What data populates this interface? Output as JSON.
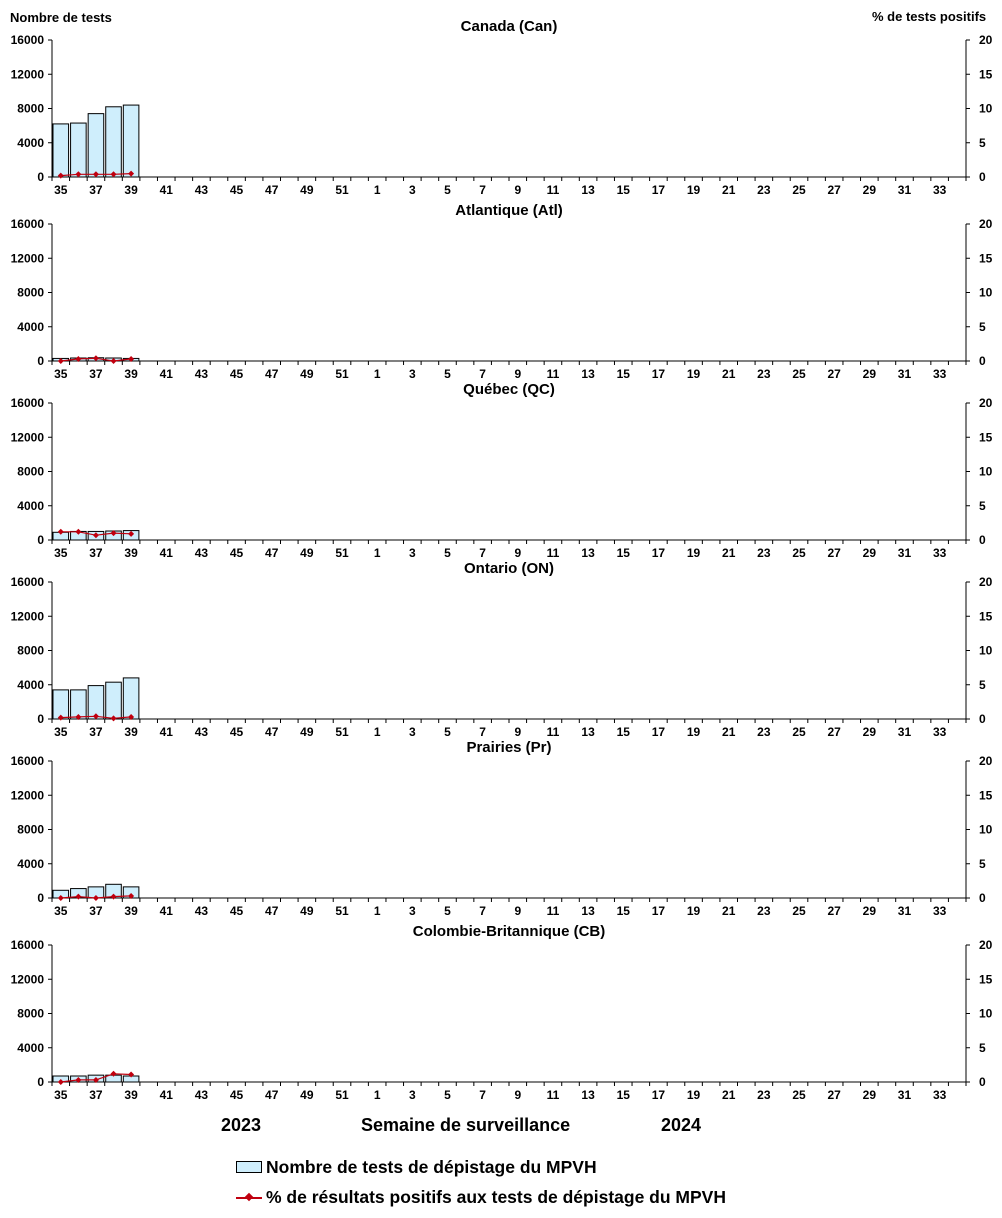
{
  "header": {
    "left_axis_title": "Nombre de tests",
    "right_axis_title": "% de tests positifs"
  },
  "footer": {
    "year_left": "2023",
    "x_axis_title": "Semaine de surveillance",
    "year_right": "2024"
  },
  "legend": {
    "bar_label": "Nombre de tests de dépistage du MPVH",
    "line_label": "% de résultats positifs aux tests de dépistage du MPVH"
  },
  "colors": {
    "bar_fill": "#cfeefc",
    "bar_stroke": "#000000",
    "line": "#c0000f"
  },
  "chart_data": [
    {
      "type": "bar",
      "title": "Canada (Can)",
      "x_tick_labels": [
        "35",
        "37",
        "39",
        "41",
        "43",
        "45",
        "47",
        "49",
        "51",
        "1",
        "3",
        "5",
        "7",
        "9",
        "11",
        "13",
        "15",
        "17",
        "19",
        "21",
        "23",
        "25",
        "27",
        "29",
        "31",
        "33"
      ],
      "weeks": [
        "35",
        "36",
        "37",
        "38",
        "39",
        "40",
        "41",
        "42",
        "43",
        "44",
        "45",
        "46",
        "47",
        "48",
        "49",
        "50",
        "51",
        "52",
        "1",
        "2",
        "3",
        "4",
        "5",
        "6",
        "7",
        "8",
        "9",
        "10",
        "11",
        "12",
        "13",
        "14",
        "15",
        "16",
        "17",
        "18",
        "19",
        "20",
        "21",
        "22",
        "23",
        "24",
        "25",
        "26",
        "27",
        "28",
        "29",
        "30",
        "31",
        "32",
        "33",
        "34"
      ],
      "ylim": [
        0,
        16000
      ],
      "yticks": [
        0,
        4000,
        8000,
        12000,
        16000
      ],
      "y2lim": [
        0,
        20
      ],
      "y2ticks": [
        0,
        5,
        10,
        15,
        20
      ],
      "series": [
        {
          "name": "Nombre de tests de dépistage du MPVH",
          "axis": "left",
          "values": [
            6200,
            6300,
            7400,
            8200,
            8400
          ]
        },
        {
          "name": "% de résultats positifs aux tests de dépistage du MPVH",
          "axis": "right",
          "type": "line",
          "values": [
            0.2,
            0.4,
            0.4,
            0.4,
            0.5
          ]
        }
      ]
    },
    {
      "type": "bar",
      "title": "Atlantique (Atl)",
      "x_tick_labels": [
        "35",
        "37",
        "39",
        "41",
        "43",
        "45",
        "47",
        "49",
        "51",
        "1",
        "3",
        "5",
        "7",
        "9",
        "11",
        "13",
        "15",
        "17",
        "19",
        "21",
        "23",
        "25",
        "27",
        "29",
        "31",
        "33"
      ],
      "weeks": [
        "35",
        "36",
        "37",
        "38",
        "39",
        "40",
        "41",
        "42",
        "43",
        "44",
        "45",
        "46",
        "47",
        "48",
        "49",
        "50",
        "51",
        "52",
        "1",
        "2",
        "3",
        "4",
        "5",
        "6",
        "7",
        "8",
        "9",
        "10",
        "11",
        "12",
        "13",
        "14",
        "15",
        "16",
        "17",
        "18",
        "19",
        "20",
        "21",
        "22",
        "23",
        "24",
        "25",
        "26",
        "27",
        "28",
        "29",
        "30",
        "31",
        "32",
        "33",
        "34"
      ],
      "ylim": [
        0,
        16000
      ],
      "yticks": [
        0,
        4000,
        8000,
        12000,
        16000
      ],
      "y2lim": [
        0,
        20
      ],
      "y2ticks": [
        0,
        5,
        10,
        15,
        20
      ],
      "series": [
        {
          "name": "Nombre de tests de dépistage du MPVH",
          "axis": "left",
          "values": [
            300,
            350,
            380,
            350,
            300
          ]
        },
        {
          "name": "% de résultats positifs aux tests de dépistage du MPVH",
          "axis": "right",
          "type": "line",
          "values": [
            0.0,
            0.3,
            0.4,
            0.0,
            0.3
          ]
        }
      ]
    },
    {
      "type": "bar",
      "title": "Québec (QC)",
      "x_tick_labels": [
        "35",
        "37",
        "39",
        "41",
        "43",
        "45",
        "47",
        "49",
        "51",
        "1",
        "3",
        "5",
        "7",
        "9",
        "11",
        "13",
        "15",
        "17",
        "19",
        "21",
        "23",
        "25",
        "27",
        "29",
        "31",
        "33"
      ],
      "weeks": [
        "35",
        "36",
        "37",
        "38",
        "39",
        "40",
        "41",
        "42",
        "43",
        "44",
        "45",
        "46",
        "47",
        "48",
        "49",
        "50",
        "51",
        "52",
        "1",
        "2",
        "3",
        "4",
        "5",
        "6",
        "7",
        "8",
        "9",
        "10",
        "11",
        "12",
        "13",
        "14",
        "15",
        "16",
        "17",
        "18",
        "19",
        "20",
        "21",
        "22",
        "23",
        "24",
        "25",
        "26",
        "27",
        "28",
        "29",
        "30",
        "31",
        "32",
        "33",
        "34"
      ],
      "ylim": [
        0,
        16000
      ],
      "yticks": [
        0,
        4000,
        8000,
        12000,
        16000
      ],
      "y2lim": [
        0,
        20
      ],
      "y2ticks": [
        0,
        5,
        10,
        15,
        20
      ],
      "series": [
        {
          "name": "Nombre de tests de dépistage du MPVH",
          "axis": "left",
          "values": [
            900,
            1000,
            1000,
            1050,
            1100
          ]
        },
        {
          "name": "% de résultats positifs aux tests de dépistage du MPVH",
          "axis": "right",
          "type": "line",
          "values": [
            1.2,
            1.2,
            0.7,
            1.0,
            0.9
          ]
        }
      ]
    },
    {
      "type": "bar",
      "title": "Ontario (ON)",
      "x_tick_labels": [
        "35",
        "37",
        "39",
        "41",
        "43",
        "45",
        "47",
        "49",
        "51",
        "1",
        "3",
        "5",
        "7",
        "9",
        "11",
        "13",
        "15",
        "17",
        "19",
        "21",
        "23",
        "25",
        "27",
        "29",
        "31",
        "33"
      ],
      "weeks": [
        "35",
        "36",
        "37",
        "38",
        "39",
        "40",
        "41",
        "42",
        "43",
        "44",
        "45",
        "46",
        "47",
        "48",
        "49",
        "50",
        "51",
        "52",
        "1",
        "2",
        "3",
        "4",
        "5",
        "6",
        "7",
        "8",
        "9",
        "10",
        "11",
        "12",
        "13",
        "14",
        "15",
        "16",
        "17",
        "18",
        "19",
        "20",
        "21",
        "22",
        "23",
        "24",
        "25",
        "26",
        "27",
        "28",
        "29",
        "30",
        "31",
        "32",
        "33",
        "34"
      ],
      "ylim": [
        0,
        16000
      ],
      "yticks": [
        0,
        4000,
        8000,
        12000,
        16000
      ],
      "y2lim": [
        0,
        20
      ],
      "y2ticks": [
        0,
        5,
        10,
        15,
        20
      ],
      "series": [
        {
          "name": "Nombre de tests de dépistage du MPVH",
          "axis": "left",
          "values": [
            3400,
            3400,
            3900,
            4300,
            4800
          ]
        },
        {
          "name": "% de résultats positifs aux tests de dépistage du MPVH",
          "axis": "right",
          "type": "line",
          "values": [
            0.2,
            0.3,
            0.4,
            0.1,
            0.3
          ]
        }
      ]
    },
    {
      "type": "bar",
      "title": "Prairies (Pr)",
      "x_tick_labels": [
        "35",
        "37",
        "39",
        "41",
        "43",
        "45",
        "47",
        "49",
        "51",
        "1",
        "3",
        "5",
        "7",
        "9",
        "11",
        "13",
        "15",
        "17",
        "19",
        "21",
        "23",
        "25",
        "27",
        "29",
        "31",
        "33"
      ],
      "weeks": [
        "35",
        "36",
        "37",
        "38",
        "39",
        "40",
        "41",
        "42",
        "43",
        "44",
        "45",
        "46",
        "47",
        "48",
        "49",
        "50",
        "51",
        "52",
        "1",
        "2",
        "3",
        "4",
        "5",
        "6",
        "7",
        "8",
        "9",
        "10",
        "11",
        "12",
        "13",
        "14",
        "15",
        "16",
        "17",
        "18",
        "19",
        "20",
        "21",
        "22",
        "23",
        "24",
        "25",
        "26",
        "27",
        "28",
        "29",
        "30",
        "31",
        "32",
        "33",
        "34"
      ],
      "ylim": [
        0,
        16000
      ],
      "yticks": [
        0,
        4000,
        8000,
        12000,
        16000
      ],
      "y2lim": [
        0,
        20
      ],
      "y2ticks": [
        0,
        5,
        10,
        15,
        20
      ],
      "series": [
        {
          "name": "Nombre de tests de dépistage du MPVH",
          "axis": "left",
          "values": [
            900,
            1100,
            1300,
            1600,
            1300
          ]
        },
        {
          "name": "% de résultats positifs aux tests de dépistage du MPVH",
          "axis": "right",
          "type": "line",
          "values": [
            0.0,
            0.2,
            0.0,
            0.2,
            0.3
          ]
        }
      ]
    },
    {
      "type": "bar",
      "title": "Colombie-Britannique (CB)",
      "x_tick_labels": [
        "35",
        "37",
        "39",
        "41",
        "43",
        "45",
        "47",
        "49",
        "51",
        "1",
        "3",
        "5",
        "7",
        "9",
        "11",
        "13",
        "15",
        "17",
        "19",
        "21",
        "23",
        "25",
        "27",
        "29",
        "31",
        "33"
      ],
      "weeks": [
        "35",
        "36",
        "37",
        "38",
        "39",
        "40",
        "41",
        "42",
        "43",
        "44",
        "45",
        "46",
        "47",
        "48",
        "49",
        "50",
        "51",
        "52",
        "1",
        "2",
        "3",
        "4",
        "5",
        "6",
        "7",
        "8",
        "9",
        "10",
        "11",
        "12",
        "13",
        "14",
        "15",
        "16",
        "17",
        "18",
        "19",
        "20",
        "21",
        "22",
        "23",
        "24",
        "25",
        "26",
        "27",
        "28",
        "29",
        "30",
        "31",
        "32",
        "33",
        "34"
      ],
      "ylim": [
        0,
        16000
      ],
      "yticks": [
        0,
        4000,
        8000,
        12000,
        16000
      ],
      "y2lim": [
        0,
        20
      ],
      "y2ticks": [
        0,
        5,
        10,
        15,
        20
      ],
      "series": [
        {
          "name": "Nombre de tests de dépistage du MPVH",
          "axis": "left",
          "values": [
            700,
            700,
            800,
            800,
            700
          ]
        },
        {
          "name": "% de résultats positifs aux tests de dépistage du MPVH",
          "axis": "right",
          "type": "line",
          "values": [
            0.0,
            0.3,
            0.3,
            1.2,
            1.1
          ]
        }
      ]
    }
  ]
}
